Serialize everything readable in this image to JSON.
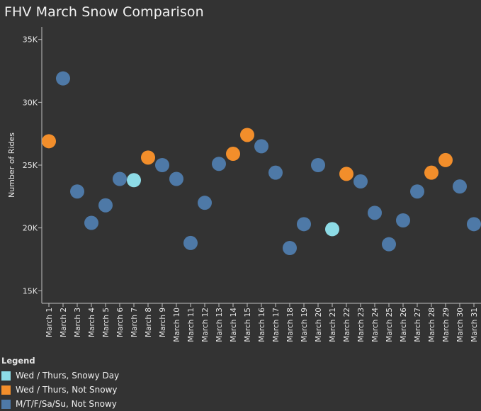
{
  "title": "FHV March Snow Comparison",
  "colors": {
    "snowy": "#8ddbe6",
    "not_snowy_wt": "#f28e2b",
    "other": "#4e79a7",
    "axis": "#bfbfbf",
    "background": "#333333"
  },
  "legend": {
    "title": "Legend",
    "items": [
      {
        "label": "Wed / Thurs, Snowy Day",
        "color": "#8ddbe6"
      },
      {
        "label": "Wed / Thurs, Not Snowy",
        "color": "#f28e2b"
      },
      {
        "label": "M/T/F/Sa/Su, Not Snowy",
        "color": "#4e79a7"
      }
    ]
  },
  "chart_data": {
    "type": "scatter",
    "title": "FHV March Snow Comparison",
    "xlabel": "",
    "ylabel": "Number of Rides",
    "ylim": [
      14000,
      36000
    ],
    "yticks": [
      15000,
      20000,
      25000,
      30000,
      35000
    ],
    "ytick_labels": [
      "15K",
      "20K",
      "25K",
      "30K",
      "35K"
    ],
    "categories": [
      "March 1",
      "March 2",
      "March 3",
      "March 4",
      "March 5",
      "March 6",
      "March 7",
      "March 8",
      "March 9",
      "March 10",
      "March 11",
      "March 12",
      "March 13",
      "March 14",
      "March 15",
      "March 16",
      "March 17",
      "March 18",
      "March 19",
      "March 20",
      "March 21",
      "March 22",
      "March 23",
      "March 24",
      "March 25",
      "March 26",
      "March 27",
      "March 28",
      "March 29",
      "March 30",
      "March 31"
    ],
    "values": [
      26900,
      31900,
      22900,
      20400,
      21800,
      23900,
      23800,
      25600,
      25000,
      23900,
      18800,
      22000,
      25100,
      25900,
      27400,
      26500,
      24400,
      18400,
      20300,
      25000,
      19900,
      24300,
      23700,
      21200,
      18700,
      20600,
      22900,
      24400,
      25400,
      23300,
      20300
    ],
    "groups": [
      "wt_not",
      "other",
      "other",
      "other",
      "other",
      "other",
      "snowy",
      "wt_not",
      "other",
      "other",
      "other",
      "other",
      "other",
      "wt_not",
      "wt_not",
      "other",
      "other",
      "other",
      "other",
      "other",
      "snowy",
      "wt_not",
      "other",
      "other",
      "other",
      "other",
      "other",
      "wt_not",
      "wt_not",
      "other",
      "other"
    ],
    "grid": false,
    "legend_position": "bottom-left"
  }
}
